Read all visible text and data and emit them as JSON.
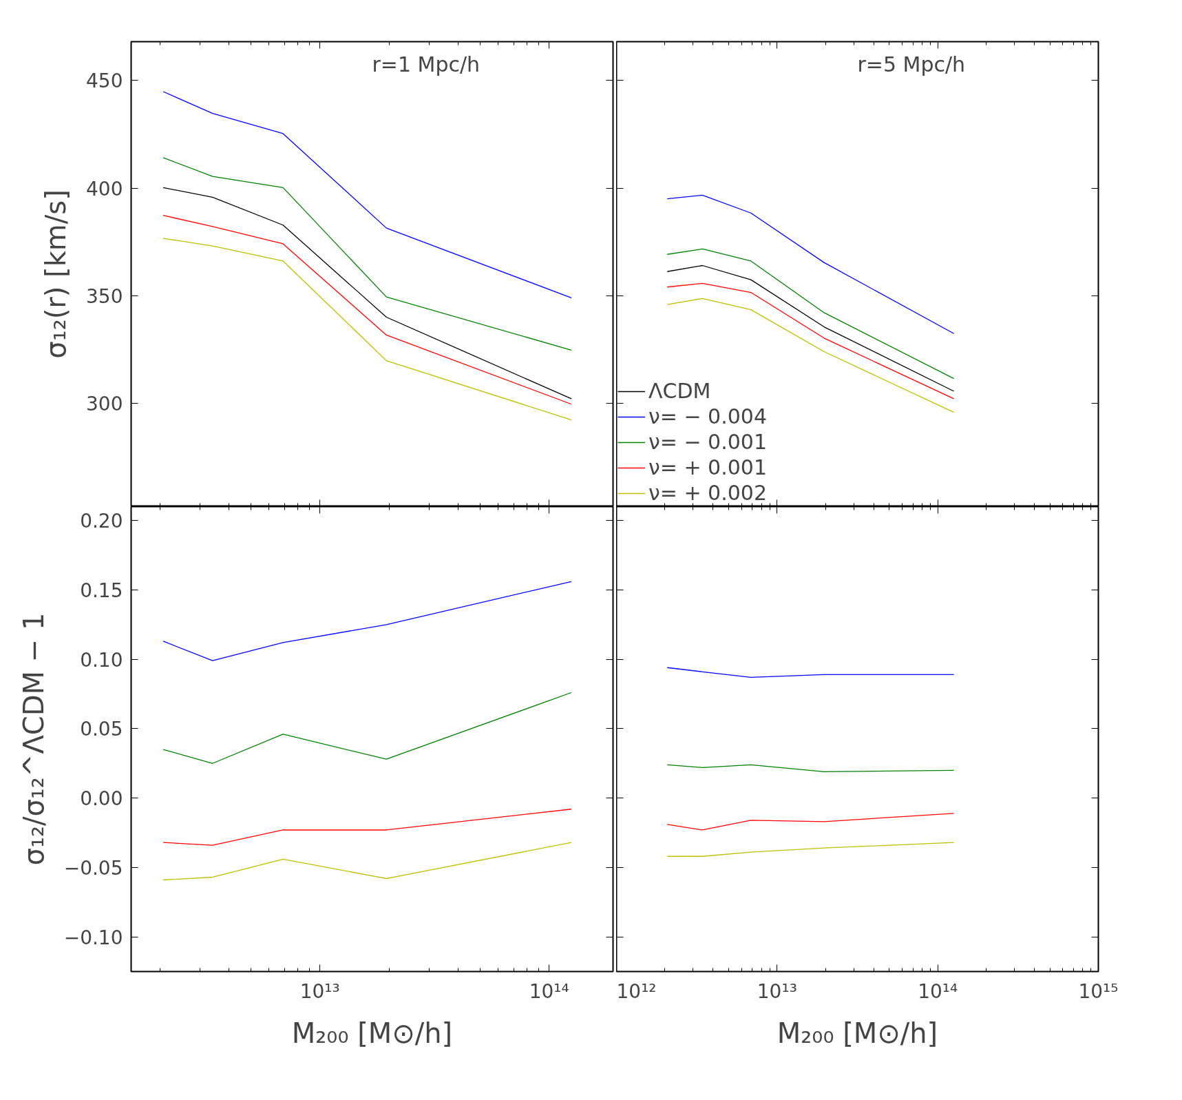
{
  "chart_data": [
    {
      "type": "line",
      "log": "x",
      "ylabel": "σ₁₂(r) [km/s]",
      "annotations": [
        "r=1 Mpc/h"
      ],
      "tick_labels": "y",
      "grid": false,
      "legend": false,
      "x": [
        2070000000000.0,
        3400000000000.0,
        6900000000000.0,
        19500000000000.0,
        125000000000000.0
      ],
      "xlim": [
        1500000000000.0,
        190000000000000.0
      ],
      "xticks": [
        {
          "value": 10000000000000.0,
          "label": null
        },
        {
          "value": 100000000000000.0,
          "label": null
        }
      ],
      "ylim": [
        252,
        468
      ],
      "yticks": [
        300,
        350,
        400,
        450
      ],
      "series": [
        {
          "color": "#000000",
          "values": [
            400.2,
            395.7,
            382.8,
            340,
            302.1
          ]
        },
        {
          "color": "#0000ff",
          "values": [
            444.8,
            434.7,
            425.3,
            381.4,
            349
          ]
        },
        {
          "color": "#008000",
          "values": [
            414.1,
            405.4,
            400.2,
            349.4,
            324.7
          ]
        },
        {
          "color": "#ff0000",
          "values": [
            387.3,
            382.1,
            374.1,
            331.7,
            299.6
          ]
        },
        {
          "color": "#bfbf00",
          "values": [
            376.6,
            373.1,
            366.1,
            319.8,
            292.3
          ]
        }
      ]
    },
    {
      "type": "line",
      "log": "x",
      "annotations": [
        "r=5 Mpc/h"
      ],
      "tick_labels": false,
      "grid": false,
      "legend": "bottom left",
      "x": [
        2070000000000.0,
        3430000000000.0,
        6870000000000.0,
        19600000000000.0,
        126000000000000.0
      ],
      "xlim": [
        1000000000000.0,
        1000000000000000.0
      ],
      "xticks": [
        {
          "value": 1000000000000.0,
          "label": null
        },
        {
          "value": 10000000000000.0,
          "label": null
        },
        {
          "value": 100000000000000.0,
          "label": null
        },
        {
          "value": 1000000000000000.0,
          "label": null
        }
      ],
      "ylim": [
        252,
        468
      ],
      "yticks": [
        {
          "value": 300,
          "label": null
        },
        {
          "value": 350,
          "label": null
        },
        {
          "value": 400,
          "label": null
        },
        {
          "value": 450,
          "label": null
        }
      ],
      "series": [
        {
          "name": "ΛCDM",
          "color": "#000000",
          "values": [
            361.2,
            364,
            357.4,
            335.5,
            305.6
          ]
        },
        {
          "name": "ν= − 0.004",
          "color": "#0000ff",
          "values": [
            395,
            396.7,
            388.4,
            365.4,
            332.4
          ]
        },
        {
          "name": "ν= − 0.001",
          "color": "#008000",
          "values": [
            369.2,
            371.7,
            366.1,
            342.1,
            311.5
          ]
        },
        {
          "name": "ν= + 0.001",
          "color": "#ff0000",
          "values": [
            354,
            355.7,
            351.5,
            330.3,
            302.1
          ]
        },
        {
          "name": "ν= + 0.002",
          "color": "#bfbf00",
          "values": [
            345.9,
            348.7,
            343.5,
            324,
            295.8
          ]
        }
      ]
    },
    {
      "type": "line",
      "log": "x",
      "ylabel": "σ₁₂/σ₁₂^ΛCDM − 1",
      "xlabel": "M₂₀₀ [M⊙/h]",
      "grid": false,
      "legend": false,
      "x": [
        2070000000000.0,
        3400000000000.0,
        6900000000000.0,
        19500000000000.0,
        125000000000000.0
      ],
      "xlim": [
        1500000000000.0,
        190000000000000.0
      ],
      "xticks": [
        {
          "value": 10000000000000.0,
          "label": "10¹³"
        },
        {
          "value": 100000000000000.0,
          "label": "10¹⁴"
        }
      ],
      "ylim": [
        -0.125,
        0.21
      ],
      "yticks": [
        {
          "value": -0.1,
          "label": "−0.10"
        },
        {
          "value": -0.05,
          "label": "−0.05"
        },
        {
          "value": 0,
          "label": "0.00"
        },
        {
          "value": 0.05,
          "label": "0.05"
        },
        {
          "value": 0.1,
          "label": "0.10"
        },
        {
          "value": 0.15,
          "label": "0.15"
        },
        {
          "value": 0.2,
          "label": "0.20"
        }
      ],
      "series": [
        {
          "color": "#0000ff",
          "values": [
            0.113,
            0.099,
            0.112,
            0.125,
            0.156
          ]
        },
        {
          "color": "#008000",
          "values": [
            0.035,
            0.025,
            0.046,
            0.028,
            0.076
          ]
        },
        {
          "color": "#ff0000",
          "values": [
            -0.032,
            -0.034,
            -0.023,
            -0.023,
            -0.008
          ]
        },
        {
          "color": "#bfbf00",
          "values": [
            -0.059,
            -0.057,
            -0.044,
            -0.058,
            -0.032
          ]
        }
      ]
    },
    {
      "type": "line",
      "log": "x",
      "xlabel": "M₂₀₀ [M⊙/h]",
      "tick_labels": "x",
      "grid": false,
      "legend": false,
      "x": [
        2070000000000.0,
        3430000000000.0,
        6870000000000.0,
        19600000000000.0,
        126000000000000.0
      ],
      "xlim": [
        1000000000000.0,
        1000000000000000.0
      ],
      "xticks": [
        {
          "value": 1000000000000.0,
          "label": "10¹²"
        },
        {
          "value": 10000000000000.0,
          "label": "10¹³"
        },
        {
          "value": 100000000000000.0,
          "label": "10¹⁴"
        },
        {
          "value": 1000000000000000.0,
          "label": "10¹⁵"
        }
      ],
      "ylim": [
        -0.125,
        0.21
      ],
      "yticks": [
        {
          "value": -0.1,
          "label": null
        },
        {
          "value": -0.05,
          "label": null
        },
        {
          "value": 0,
          "label": null
        },
        {
          "value": 0.05,
          "label": null
        },
        {
          "value": 0.1,
          "label": null
        },
        {
          "value": 0.15,
          "label": null
        },
        {
          "value": 0.2,
          "label": null
        }
      ],
      "series": [
        {
          "color": "#0000ff",
          "values": [
            0.094,
            0.091,
            0.087,
            0.089,
            0.089
          ]
        },
        {
          "color": "#008000",
          "values": [
            0.024,
            0.022,
            0.024,
            0.019,
            0.02
          ]
        },
        {
          "color": "#ff0000",
          "values": [
            -0.019,
            -0.023,
            -0.016,
            -0.017,
            -0.011
          ]
        },
        {
          "color": "#bfbf00",
          "values": [
            -0.042,
            -0.042,
            -0.039,
            -0.036,
            -0.032
          ]
        }
      ]
    }
  ]
}
